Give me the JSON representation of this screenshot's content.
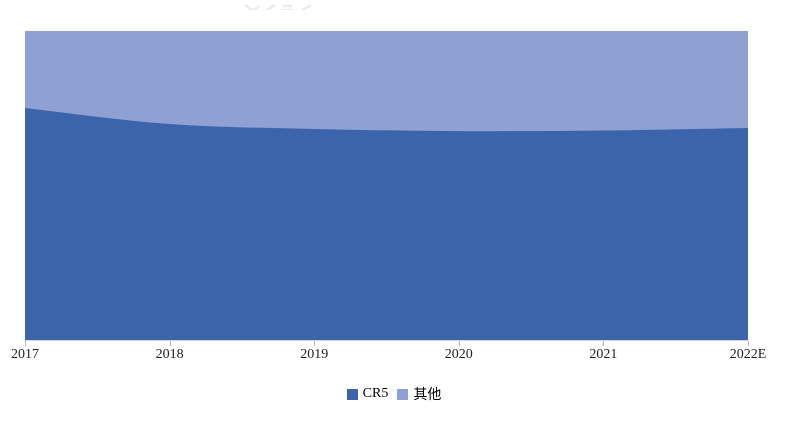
{
  "chart_data": {
    "type": "area",
    "variant": "stacked-100-percent",
    "title": "",
    "categories": [
      "2017",
      "2018",
      "2019",
      "2020",
      "2021",
      "2022E"
    ],
    "series": [
      {
        "name": "CR5",
        "color": "#3C64AA",
        "values": [
          75.1,
          69.9,
          68.3,
          67.6,
          67.8,
          68.6
        ]
      },
      {
        "name": "其他",
        "color": "#8FA0D4",
        "values": [
          24.9,
          30.1,
          31.7,
          32.4,
          32.2,
          31.4
        ]
      }
    ],
    "xlabel": "",
    "ylabel": "",
    "ylim": [
      0,
      100
    ],
    "grid": false,
    "y_axis_visible": false,
    "legend_position": "bottom"
  },
  "axis": {
    "line_color": "#d6d6d6",
    "tick_color": "#b3b3b3",
    "label_color": "#1f1f1f"
  },
  "watermark": {
    "description": "faint-cropped-glyphs",
    "color": "#e8e8e8"
  }
}
